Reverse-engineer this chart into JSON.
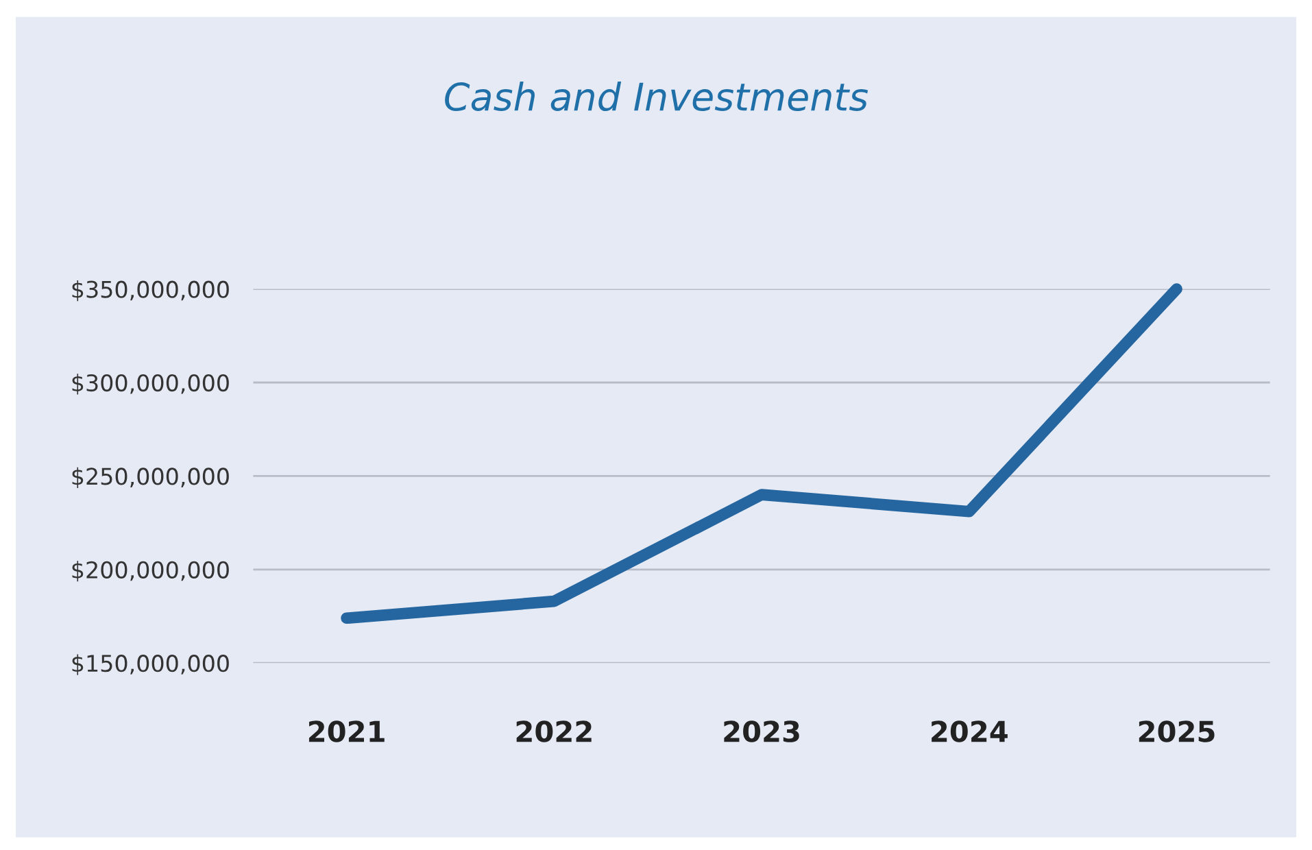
{
  "chart_data": {
    "type": "line",
    "title": "Cash and Investments",
    "categories": [
      "2021",
      "2022",
      "2023",
      "2024",
      "2025"
    ],
    "series": [
      {
        "color": "#2566a0",
        "values": [
          174000000,
          183000000,
          240000000,
          231000000,
          350000000
        ]
      }
    ],
    "ylim": [
      150000000,
      350000000
    ],
    "yticks": [
      {
        "value": 150000000,
        "label": "$150,000,000"
      },
      {
        "value": 200000000,
        "label": "$200,000,000"
      },
      {
        "value": 250000000,
        "label": "$250,000,000"
      },
      {
        "value": 300000000,
        "label": "$300,000,000"
      },
      {
        "value": 350000000,
        "label": "$350,000,000"
      }
    ],
    "grid": "y",
    "marker": "none",
    "line_style": "solid"
  }
}
